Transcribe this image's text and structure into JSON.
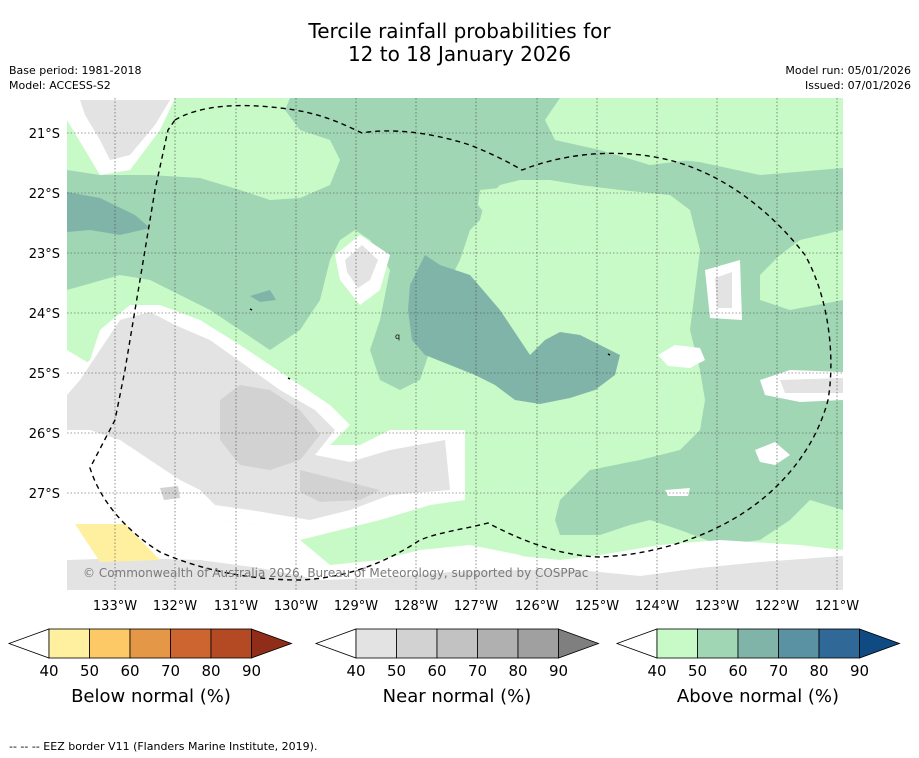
{
  "title_line1": "Tercile rainfall probabilities for",
  "title_line2": "12 to 18 January 2026",
  "base_period": "Base period: 1981-2018",
  "model": "Model: ACCESS-S2",
  "model_run": "Model run: 05/01/2026",
  "issued": "Issued: 07/01/2026",
  "copyright": "© Commonwealth of Australia 2026, Bureau of Meteorology, supported by COSPPac",
  "footer_eez": "--  --  -- EEZ border V11 (Flanders Marine Institute, 2019).",
  "map": {
    "lat_labels": [
      "21°S",
      "22°S",
      "23°S",
      "24°S",
      "25°S",
      "26°S",
      "27°S"
    ],
    "lon_labels": [
      "133°W",
      "132°W",
      "131°W",
      "130°W",
      "129°W",
      "128°W",
      "127°W",
      "126°W",
      "125°W",
      "124°W",
      "123°W",
      "122°W",
      "121°W"
    ]
  },
  "colorbars": [
    {
      "title": "Below normal (%)",
      "ticks": [
        "40",
        "50",
        "60",
        "70",
        "80",
        "90"
      ],
      "colors": [
        "#ffffff",
        "#fff0a0",
        "#fdc866",
        "#e39747",
        "#cd6531",
        "#b34a24",
        "#8f2d19"
      ]
    },
    {
      "title": "Near normal (%)",
      "ticks": [
        "40",
        "50",
        "60",
        "70",
        "80",
        "90"
      ],
      "colors": [
        "#ffffff",
        "#e3e3e3",
        "#d2d2d2",
        "#c2c2c2",
        "#b0b0b0",
        "#a0a0a0",
        "#7f7f7f"
      ]
    },
    {
      "title": "Above normal (%)",
      "ticks": [
        "40",
        "50",
        "60",
        "70",
        "80",
        "90"
      ],
      "colors": [
        "#ffffff",
        "#c8fac8",
        "#a0d6b4",
        "#80b4a8",
        "#5a92a4",
        "#306898",
        "#104a82"
      ]
    }
  ]
}
